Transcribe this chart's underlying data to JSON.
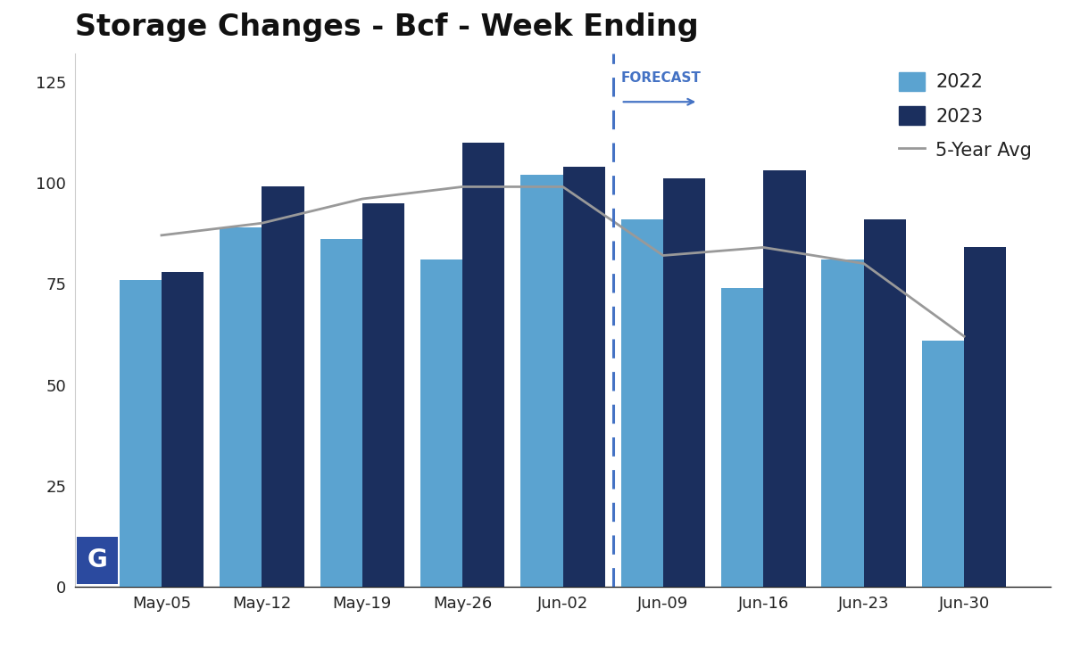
{
  "title": "Storage Changes - Bcf - Week Ending",
  "categories": [
    "May-05",
    "May-12",
    "May-19",
    "May-26",
    "Jun-02",
    "Jun-09",
    "Jun-16",
    "Jun-23",
    "Jun-30"
  ],
  "values_2022": [
    76,
    89,
    86,
    81,
    102,
    91,
    74,
    81,
    61
  ],
  "values_2023": [
    78,
    99,
    95,
    110,
    104,
    101,
    103,
    91,
    84
  ],
  "values_5yr_avg": [
    87,
    90,
    96,
    99,
    99,
    82,
    84,
    80,
    62
  ],
  "color_2022": "#5ba3d0",
  "color_2023": "#1b2f5e",
  "color_5yr_avg": "#999999",
  "color_forecast_line": "#4472c4",
  "forecast_label": "FORECAST",
  "forecast_index": 4.5,
  "ylim": [
    0,
    132
  ],
  "yticks": [
    0,
    25,
    50,
    75,
    100,
    125
  ],
  "legend_2022": "2022",
  "legend_2023": "2023",
  "legend_5yr": "5-Year Avg",
  "background_color": "#ffffff",
  "title_fontsize": 24,
  "bar_width": 0.42,
  "logo_text": "G",
  "logo_bg": "#2b4a9f",
  "logo_text_color": "#ffffff"
}
